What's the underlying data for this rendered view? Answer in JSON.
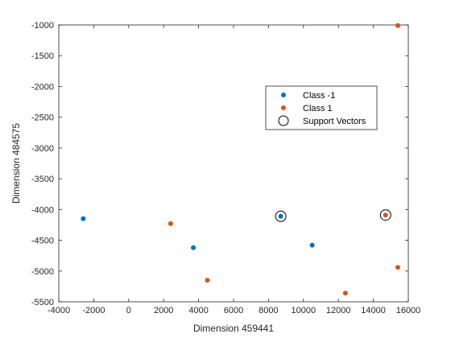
{
  "chart_data": {
    "type": "scatter",
    "title": "",
    "xlabel": "Dimension 459441",
    "ylabel": "Dimension 484575",
    "xlim": [
      -4000,
      16000
    ],
    "ylim": [
      -5500,
      -1000
    ],
    "xticks": [
      -4000,
      -2000,
      0,
      2000,
      4000,
      6000,
      8000,
      10000,
      12000,
      14000,
      16000
    ],
    "yticks": [
      -5500,
      -5000,
      -4500,
      -4000,
      -3500,
      -3000,
      -2500,
      -2000,
      -1500,
      -1000
    ],
    "grid": false,
    "legend_position": "top-right",
    "series": [
      {
        "name": "Class -1",
        "color": "#0072BD",
        "marker": "dot",
        "points": [
          {
            "x": -2600,
            "y": -4150
          },
          {
            "x": 3700,
            "y": -4620
          },
          {
            "x": 8700,
            "y": -4110
          },
          {
            "x": 10500,
            "y": -4580
          }
        ]
      },
      {
        "name": "Class 1",
        "color": "#D95319",
        "marker": "dot",
        "points": [
          {
            "x": 2400,
            "y": -4230
          },
          {
            "x": 4500,
            "y": -5150
          },
          {
            "x": 12400,
            "y": -5360
          },
          {
            "x": 14700,
            "y": -4090
          },
          {
            "x": 15400,
            "y": -4940
          },
          {
            "x": 15400,
            "y": -1010
          }
        ]
      },
      {
        "name": "Support Vectors",
        "color": "#000000",
        "marker": "circle",
        "points": [
          {
            "x": 8700,
            "y": -4110
          },
          {
            "x": 14700,
            "y": -4090
          }
        ]
      }
    ]
  }
}
